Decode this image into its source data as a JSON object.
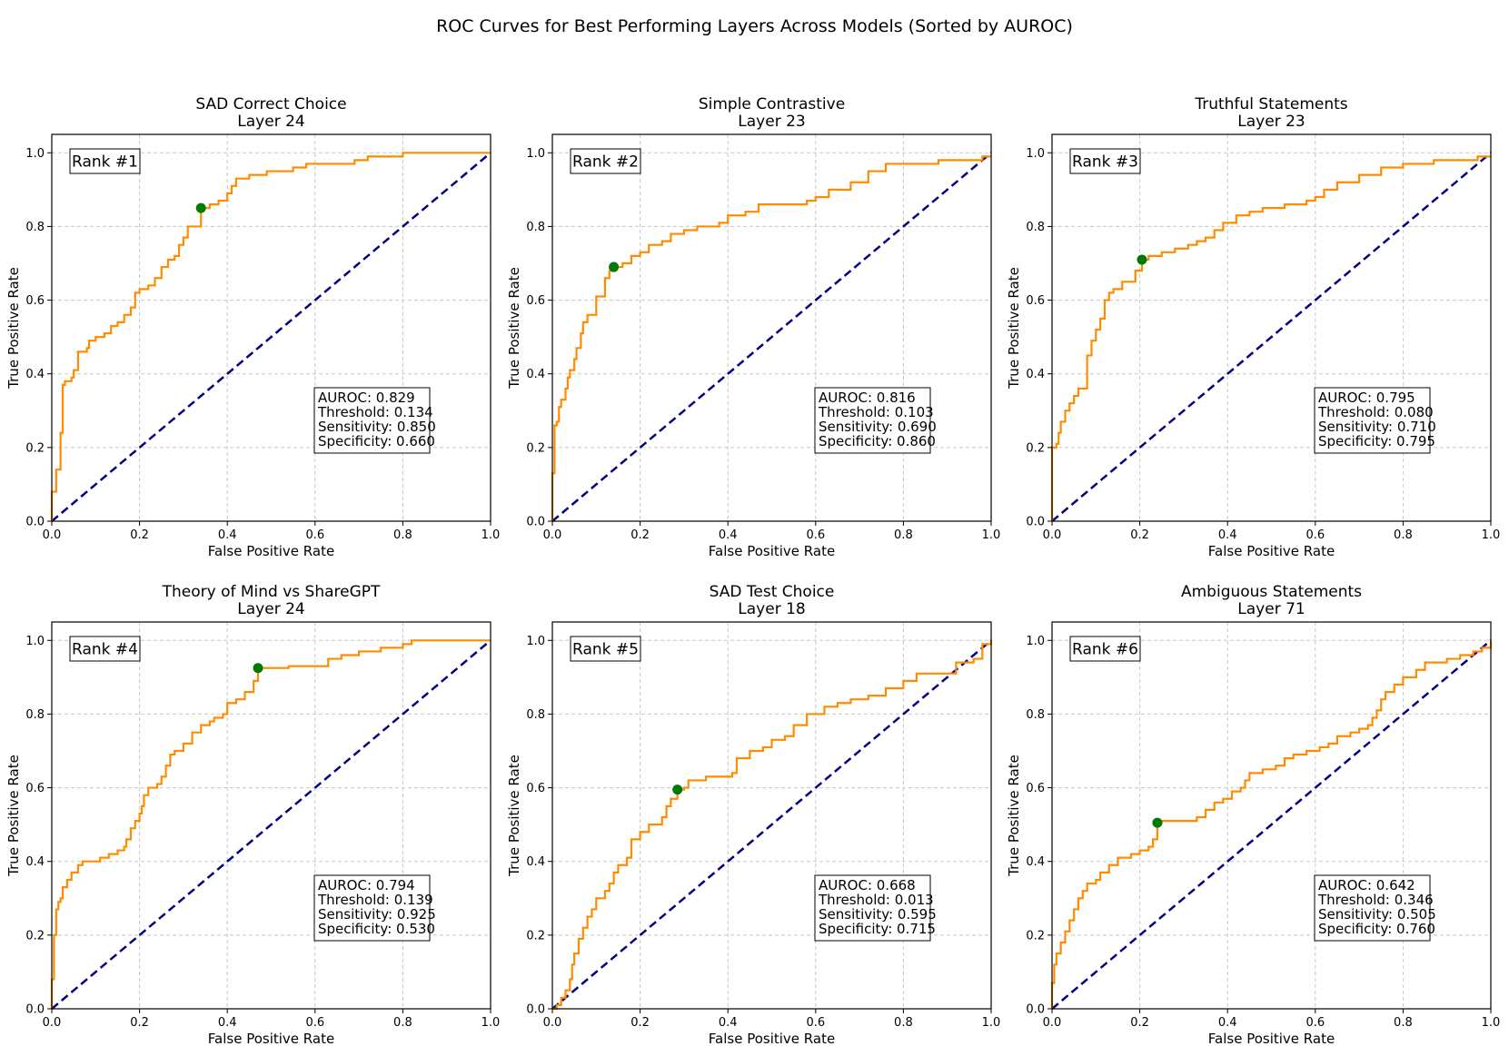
{
  "figure": {
    "title": "ROC Curves for Best Performing Layers Across Models (Sorted by AUROC)"
  },
  "colors": {
    "roc_curve": "#ff8c00",
    "diagonal": "#000080",
    "optimal_point": "#007a00",
    "grid": "#c8c8c8"
  },
  "chart_data": [
    {
      "type": "line",
      "title": "SAD Correct Choice",
      "subtitle": "Layer 24",
      "rank": "Rank #1",
      "xlabel": "False Positive Rate",
      "ylabel": "True Positive Rate",
      "xlim": [
        0,
        1
      ],
      "ylim": [
        0,
        1.05
      ],
      "xticks": [
        "0.0",
        "0.2",
        "0.4",
        "0.6",
        "0.8",
        "1.0"
      ],
      "yticks": [
        "0.0",
        "0.2",
        "0.4",
        "0.6",
        "0.8",
        "1.0"
      ],
      "grid": true,
      "stats": [
        "AUROC: 0.829",
        "Threshold: 0.134",
        "Sensitivity: 0.850",
        "Specificity: 0.660"
      ],
      "optimal_point": {
        "fpr": 0.34,
        "tpr": 0.85
      },
      "roc": [
        [
          0,
          0
        ],
        [
          0,
          0.08
        ],
        [
          0.01,
          0.09
        ],
        [
          0.01,
          0.14
        ],
        [
          0.02,
          0.14
        ],
        [
          0.02,
          0.24
        ],
        [
          0.025,
          0.37
        ],
        [
          0.03,
          0.38
        ],
        [
          0.04,
          0.38
        ],
        [
          0.045,
          0.39
        ],
        [
          0.05,
          0.41
        ],
        [
          0.06,
          0.43
        ],
        [
          0.06,
          0.46
        ],
        [
          0.08,
          0.47
        ],
        [
          0.085,
          0.49
        ],
        [
          0.1,
          0.5
        ],
        [
          0.12,
          0.51
        ],
        [
          0.135,
          0.53
        ],
        [
          0.15,
          0.54
        ],
        [
          0.165,
          0.56
        ],
        [
          0.18,
          0.58
        ],
        [
          0.19,
          0.62
        ],
        [
          0.2,
          0.63
        ],
        [
          0.22,
          0.64
        ],
        [
          0.235,
          0.66
        ],
        [
          0.25,
          0.69
        ],
        [
          0.265,
          0.71
        ],
        [
          0.28,
          0.72
        ],
        [
          0.29,
          0.75
        ],
        [
          0.3,
          0.77
        ],
        [
          0.31,
          0.8
        ],
        [
          0.34,
          0.82
        ],
        [
          0.34,
          0.85
        ],
        [
          0.36,
          0.86
        ],
        [
          0.38,
          0.87
        ],
        [
          0.4,
          0.89
        ],
        [
          0.41,
          0.91
        ],
        [
          0.42,
          0.93
        ],
        [
          0.45,
          0.94
        ],
        [
          0.49,
          0.95
        ],
        [
          0.55,
          0.96
        ],
        [
          0.58,
          0.97
        ],
        [
          0.69,
          0.98
        ],
        [
          0.72,
          0.99
        ],
        [
          0.8,
          0.99
        ],
        [
          0.8,
          1.0
        ],
        [
          1.0,
          1.0
        ]
      ]
    },
    {
      "type": "line",
      "title": "Simple Contrastive",
      "subtitle": "Layer 23",
      "rank": "Rank #2",
      "xlabel": "False Positive Rate",
      "ylabel": "True Positive Rate",
      "xlim": [
        0,
        1
      ],
      "ylim": [
        0,
        1.05
      ],
      "xticks": [
        "0.0",
        "0.2",
        "0.4",
        "0.6",
        "0.8",
        "1.0"
      ],
      "yticks": [
        "0.0",
        "0.2",
        "0.4",
        "0.6",
        "0.8",
        "1.0"
      ],
      "grid": true,
      "stats": [
        "AUROC: 0.816",
        "Threshold: 0.103",
        "Sensitivity: 0.690",
        "Specificity: 0.860"
      ],
      "optimal_point": {
        "fpr": 0.14,
        "tpr": 0.69
      },
      "roc": [
        [
          0,
          0
        ],
        [
          0,
          0.13
        ],
        [
          0.005,
          0.26
        ],
        [
          0.01,
          0.27
        ],
        [
          0.015,
          0.31
        ],
        [
          0.02,
          0.33
        ],
        [
          0.03,
          0.36
        ],
        [
          0.035,
          0.39
        ],
        [
          0.04,
          0.41
        ],
        [
          0.05,
          0.44
        ],
        [
          0.055,
          0.47
        ],
        [
          0.065,
          0.51
        ],
        [
          0.07,
          0.54
        ],
        [
          0.08,
          0.56
        ],
        [
          0.1,
          0.56
        ],
        [
          0.1,
          0.61
        ],
        [
          0.12,
          0.62
        ],
        [
          0.12,
          0.66
        ],
        [
          0.13,
          0.68
        ],
        [
          0.14,
          0.69
        ],
        [
          0.16,
          0.7
        ],
        [
          0.18,
          0.72
        ],
        [
          0.2,
          0.73
        ],
        [
          0.22,
          0.75
        ],
        [
          0.25,
          0.76
        ],
        [
          0.27,
          0.78
        ],
        [
          0.3,
          0.79
        ],
        [
          0.33,
          0.8
        ],
        [
          0.38,
          0.81
        ],
        [
          0.4,
          0.83
        ],
        [
          0.44,
          0.84
        ],
        [
          0.47,
          0.86
        ],
        [
          0.58,
          0.87
        ],
        [
          0.6,
          0.88
        ],
        [
          0.63,
          0.9
        ],
        [
          0.68,
          0.92
        ],
        [
          0.72,
          0.95
        ],
        [
          0.76,
          0.97
        ],
        [
          0.85,
          0.97
        ],
        [
          0.88,
          0.98
        ],
        [
          0.97,
          0.98
        ],
        [
          0.98,
          0.99
        ],
        [
          1.0,
          0.99
        ]
      ]
    },
    {
      "type": "line",
      "title": "Truthful Statements",
      "subtitle": "Layer 23",
      "rank": "Rank #3",
      "xlabel": "False Positive Rate",
      "ylabel": "True Positive Rate",
      "xlim": [
        0,
        1
      ],
      "ylim": [
        0,
        1.05
      ],
      "xticks": [
        "0.0",
        "0.2",
        "0.4",
        "0.6",
        "0.8",
        "1.0"
      ],
      "yticks": [
        "0.0",
        "0.2",
        "0.4",
        "0.6",
        "0.8",
        "1.0"
      ],
      "grid": true,
      "stats": [
        "AUROC: 0.795",
        "Threshold: 0.080",
        "Sensitivity: 0.710",
        "Specificity: 0.795"
      ],
      "optimal_point": {
        "fpr": 0.205,
        "tpr": 0.71
      },
      "roc": [
        [
          0,
          0
        ],
        [
          0,
          0.2
        ],
        [
          0.01,
          0.21
        ],
        [
          0.015,
          0.24
        ],
        [
          0.02,
          0.27
        ],
        [
          0.03,
          0.3
        ],
        [
          0.04,
          0.32
        ],
        [
          0.05,
          0.34
        ],
        [
          0.06,
          0.36
        ],
        [
          0.08,
          0.36
        ],
        [
          0.08,
          0.45
        ],
        [
          0.09,
          0.49
        ],
        [
          0.1,
          0.52
        ],
        [
          0.11,
          0.55
        ],
        [
          0.12,
          0.6
        ],
        [
          0.13,
          0.62
        ],
        [
          0.14,
          0.63
        ],
        [
          0.16,
          0.65
        ],
        [
          0.185,
          0.65
        ],
        [
          0.19,
          0.68
        ],
        [
          0.205,
          0.71
        ],
        [
          0.22,
          0.72
        ],
        [
          0.25,
          0.73
        ],
        [
          0.28,
          0.74
        ],
        [
          0.31,
          0.75
        ],
        [
          0.33,
          0.76
        ],
        [
          0.35,
          0.77
        ],
        [
          0.37,
          0.79
        ],
        [
          0.39,
          0.81
        ],
        [
          0.42,
          0.83
        ],
        [
          0.45,
          0.84
        ],
        [
          0.48,
          0.85
        ],
        [
          0.53,
          0.86
        ],
        [
          0.58,
          0.87
        ],
        [
          0.6,
          0.88
        ],
        [
          0.62,
          0.9
        ],
        [
          0.65,
          0.92
        ],
        [
          0.7,
          0.94
        ],
        [
          0.75,
          0.96
        ],
        [
          0.8,
          0.97
        ],
        [
          0.87,
          0.98
        ],
        [
          0.92,
          0.98
        ],
        [
          0.97,
          0.99
        ],
        [
          1.0,
          0.99
        ]
      ]
    },
    {
      "type": "line",
      "title": "Theory of Mind vs ShareGPT",
      "subtitle": "Layer 24",
      "rank": "Rank #4",
      "xlabel": "False Positive Rate",
      "ylabel": "True Positive Rate",
      "xlim": [
        0,
        1
      ],
      "ylim": [
        0,
        1.05
      ],
      "xticks": [
        "0.0",
        "0.2",
        "0.4",
        "0.6",
        "0.8",
        "1.0"
      ],
      "yticks": [
        "0.0",
        "0.2",
        "0.4",
        "0.6",
        "0.8",
        "1.0"
      ],
      "grid": true,
      "stats": [
        "AUROC: 0.794",
        "Threshold: 0.139",
        "Sensitivity: 0.925",
        "Specificity: 0.530"
      ],
      "optimal_point": {
        "fpr": 0.47,
        "tpr": 0.925
      },
      "roc": [
        [
          0,
          0
        ],
        [
          0,
          0.08
        ],
        [
          0.005,
          0.2
        ],
        [
          0.01,
          0.27
        ],
        [
          0.015,
          0.29
        ],
        [
          0.02,
          0.3
        ],
        [
          0.025,
          0.33
        ],
        [
          0.035,
          0.35
        ],
        [
          0.045,
          0.37
        ],
        [
          0.06,
          0.39
        ],
        [
          0.07,
          0.4
        ],
        [
          0.1,
          0.4
        ],
        [
          0.11,
          0.41
        ],
        [
          0.13,
          0.42
        ],
        [
          0.15,
          0.43
        ],
        [
          0.165,
          0.44
        ],
        [
          0.17,
          0.46
        ],
        [
          0.18,
          0.49
        ],
        [
          0.19,
          0.51
        ],
        [
          0.2,
          0.53
        ],
        [
          0.205,
          0.55
        ],
        [
          0.21,
          0.58
        ],
        [
          0.22,
          0.6
        ],
        [
          0.24,
          0.61
        ],
        [
          0.25,
          0.63
        ],
        [
          0.26,
          0.66
        ],
        [
          0.27,
          0.69
        ],
        [
          0.28,
          0.7
        ],
        [
          0.3,
          0.72
        ],
        [
          0.32,
          0.75
        ],
        [
          0.34,
          0.77
        ],
        [
          0.36,
          0.78
        ],
        [
          0.37,
          0.79
        ],
        [
          0.39,
          0.8
        ],
        [
          0.4,
          0.83
        ],
        [
          0.42,
          0.84
        ],
        [
          0.44,
          0.86
        ],
        [
          0.46,
          0.89
        ],
        [
          0.47,
          0.925
        ],
        [
          0.5,
          0.925
        ],
        [
          0.54,
          0.93
        ],
        [
          0.62,
          0.93
        ],
        [
          0.63,
          0.95
        ],
        [
          0.66,
          0.96
        ],
        [
          0.7,
          0.97
        ],
        [
          0.75,
          0.98
        ],
        [
          0.8,
          0.99
        ],
        [
          0.82,
          1.0
        ],
        [
          1.0,
          1.0
        ]
      ]
    },
    {
      "type": "line",
      "title": "SAD Test Choice",
      "subtitle": "Layer 18",
      "rank": "Rank #5",
      "xlabel": "False Positive Rate",
      "ylabel": "True Positive Rate",
      "xlim": [
        0,
        1
      ],
      "ylim": [
        0,
        1.05
      ],
      "xticks": [
        "0.0",
        "0.2",
        "0.4",
        "0.6",
        "0.8",
        "1.0"
      ],
      "yticks": [
        "0.0",
        "0.2",
        "0.4",
        "0.6",
        "0.8",
        "1.0"
      ],
      "grid": true,
      "stats": [
        "AUROC: 0.668",
        "Threshold: 0.013",
        "Sensitivity: 0.595",
        "Specificity: 0.715"
      ],
      "optimal_point": {
        "fpr": 0.285,
        "tpr": 0.595
      },
      "roc": [
        [
          0,
          0
        ],
        [
          0.01,
          0.01
        ],
        [
          0.02,
          0.03
        ],
        [
          0.03,
          0.05
        ],
        [
          0.04,
          0.08
        ],
        [
          0.045,
          0.12
        ],
        [
          0.05,
          0.15
        ],
        [
          0.06,
          0.19
        ],
        [
          0.07,
          0.22
        ],
        [
          0.08,
          0.25
        ],
        [
          0.09,
          0.27
        ],
        [
          0.1,
          0.3
        ],
        [
          0.12,
          0.32
        ],
        [
          0.13,
          0.34
        ],
        [
          0.14,
          0.37
        ],
        [
          0.15,
          0.39
        ],
        [
          0.17,
          0.41
        ],
        [
          0.18,
          0.46
        ],
        [
          0.2,
          0.48
        ],
        [
          0.22,
          0.5
        ],
        [
          0.25,
          0.52
        ],
        [
          0.26,
          0.55
        ],
        [
          0.27,
          0.57
        ],
        [
          0.285,
          0.595
        ],
        [
          0.3,
          0.6
        ],
        [
          0.31,
          0.62
        ],
        [
          0.35,
          0.63
        ],
        [
          0.41,
          0.64
        ],
        [
          0.42,
          0.68
        ],
        [
          0.45,
          0.7
        ],
        [
          0.48,
          0.71
        ],
        [
          0.5,
          0.73
        ],
        [
          0.53,
          0.74
        ],
        [
          0.55,
          0.77
        ],
        [
          0.58,
          0.8
        ],
        [
          0.62,
          0.82
        ],
        [
          0.65,
          0.83
        ],
        [
          0.68,
          0.84
        ],
        [
          0.72,
          0.85
        ],
        [
          0.76,
          0.87
        ],
        [
          0.8,
          0.89
        ],
        [
          0.83,
          0.91
        ],
        [
          0.9,
          0.91
        ],
        [
          0.92,
          0.94
        ],
        [
          0.96,
          0.95
        ],
        [
          0.98,
          0.97
        ],
        [
          0.98,
          0.99
        ],
        [
          1.0,
          1.0
        ]
      ]
    },
    {
      "type": "line",
      "title": "Ambiguous Statements",
      "subtitle": "Layer 71",
      "rank": "Rank #6",
      "xlabel": "False Positive Rate",
      "ylabel": "True Positive Rate",
      "xlim": [
        0,
        1
      ],
      "ylim": [
        0,
        1.05
      ],
      "xticks": [
        "0.0",
        "0.2",
        "0.4",
        "0.6",
        "0.8",
        "1.0"
      ],
      "yticks": [
        "0.0",
        "0.2",
        "0.4",
        "0.6",
        "0.8",
        "1.0"
      ],
      "grid": true,
      "stats": [
        "AUROC: 0.642",
        "Threshold: 0.346",
        "Sensitivity: 0.505",
        "Specificity: 0.760"
      ],
      "optimal_point": {
        "fpr": 0.24,
        "tpr": 0.505
      },
      "roc": [
        [
          0,
          0
        ],
        [
          0,
          0.07
        ],
        [
          0.005,
          0.12
        ],
        [
          0.01,
          0.15
        ],
        [
          0.02,
          0.18
        ],
        [
          0.03,
          0.21
        ],
        [
          0.04,
          0.24
        ],
        [
          0.05,
          0.27
        ],
        [
          0.06,
          0.3
        ],
        [
          0.07,
          0.32
        ],
        [
          0.08,
          0.34
        ],
        [
          0.1,
          0.35
        ],
        [
          0.11,
          0.37
        ],
        [
          0.13,
          0.39
        ],
        [
          0.15,
          0.41
        ],
        [
          0.18,
          0.42
        ],
        [
          0.2,
          0.43
        ],
        [
          0.22,
          0.44
        ],
        [
          0.23,
          0.46
        ],
        [
          0.24,
          0.505
        ],
        [
          0.25,
          0.51
        ],
        [
          0.3,
          0.51
        ],
        [
          0.33,
          0.52
        ],
        [
          0.35,
          0.54
        ],
        [
          0.37,
          0.56
        ],
        [
          0.39,
          0.57
        ],
        [
          0.41,
          0.59
        ],
        [
          0.43,
          0.6
        ],
        [
          0.44,
          0.62
        ],
        [
          0.45,
          0.64
        ],
        [
          0.48,
          0.65
        ],
        [
          0.51,
          0.66
        ],
        [
          0.53,
          0.68
        ],
        [
          0.55,
          0.69
        ],
        [
          0.58,
          0.7
        ],
        [
          0.61,
          0.71
        ],
        [
          0.63,
          0.72
        ],
        [
          0.65,
          0.74
        ],
        [
          0.68,
          0.75
        ],
        [
          0.7,
          0.76
        ],
        [
          0.72,
          0.77
        ],
        [
          0.73,
          0.79
        ],
        [
          0.74,
          0.81
        ],
        [
          0.75,
          0.84
        ],
        [
          0.76,
          0.86
        ],
        [
          0.78,
          0.88
        ],
        [
          0.8,
          0.9
        ],
        [
          0.83,
          0.92
        ],
        [
          0.85,
          0.94
        ],
        [
          0.9,
          0.95
        ],
        [
          0.93,
          0.96
        ],
        [
          0.96,
          0.97
        ],
        [
          0.98,
          0.98
        ],
        [
          1.0,
          1.0
        ]
      ]
    }
  ]
}
